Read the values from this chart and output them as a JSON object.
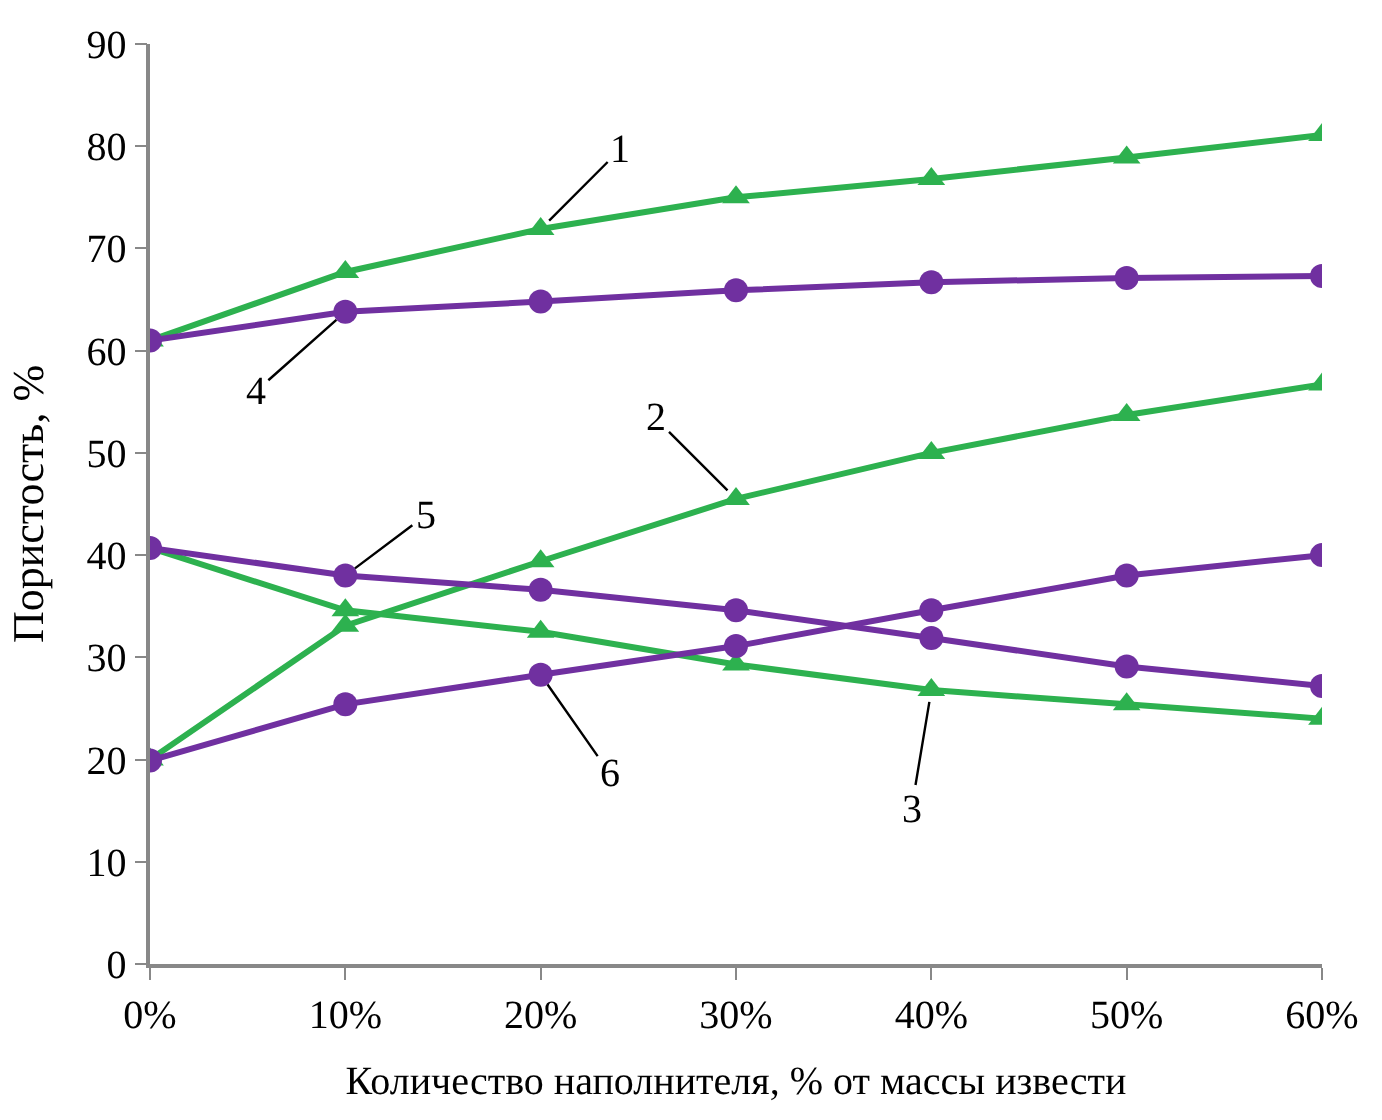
{
  "chart_data": {
    "type": "line",
    "xlabel": "Количество наполнителя, % от массы извести",
    "ylabel": "Пористость, %",
    "x": [
      0,
      10,
      20,
      30,
      40,
      50,
      60
    ],
    "xlim": [
      0,
      60
    ],
    "xticks": [
      {
        "value": 0,
        "label": "0%"
      },
      {
        "value": 10,
        "label": "10%"
      },
      {
        "value": 20,
        "label": "20%"
      },
      {
        "value": 30,
        "label": "30%"
      },
      {
        "value": 40,
        "label": "40%"
      },
      {
        "value": 50,
        "label": "50%"
      },
      {
        "value": 60,
        "label": "60%"
      }
    ],
    "ylim": [
      0,
      90
    ],
    "yticks": [
      0,
      10,
      20,
      30,
      40,
      50,
      60,
      70,
      80,
      90
    ],
    "grid": false,
    "line_style": "solid",
    "series": [
      {
        "color": "#2db14f",
        "marker": "triangle",
        "values": [
          61,
          67.7,
          71.9,
          75,
          76.8,
          78.9,
          81.1
        ]
      },
      {
        "color": "#2db14f",
        "marker": "triangle",
        "values": [
          20,
          33.1,
          39.4,
          45.5,
          50,
          53.7,
          56.7
        ]
      },
      {
        "color": "#2db14f",
        "marker": "triangle",
        "values": [
          40.7,
          34.6,
          32.5,
          29.3,
          26.8,
          25.4,
          24
        ]
      },
      {
        "color": "#7030a0",
        "marker": "circle",
        "values": [
          61,
          63.8,
          64.8,
          65.9,
          66.7,
          67.1,
          67.3
        ]
      },
      {
        "color": "#7030a0",
        "marker": "circle",
        "values": [
          40.7,
          38,
          36.6,
          34.6,
          31.9,
          29.1,
          27.2
        ]
      },
      {
        "color": "#7030a0",
        "marker": "circle",
        "values": [
          19.9,
          25.4,
          28.3,
          31.1,
          34.6,
          38,
          40
        ]
      }
    ],
    "annotations": [
      {
        "text": "1",
        "x": 20,
        "y": 71.9
      },
      {
        "text": "2",
        "x": 30,
        "y": 45.5
      },
      {
        "text": "3",
        "x": 40,
        "y": 26.8
      },
      {
        "text": "4",
        "x": 10,
        "y": 63.8
      },
      {
        "text": "5",
        "x": 10,
        "y": 38
      },
      {
        "text": "6",
        "x": 20,
        "y": 28.3
      }
    ]
  }
}
